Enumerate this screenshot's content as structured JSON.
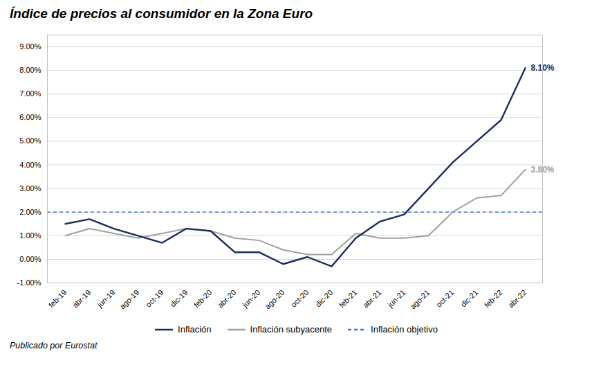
{
  "chart_data": {
    "type": "line",
    "title": "Índice de precios al consumidor en la Zona Euro",
    "subtitle": "Publicado por Eurostat",
    "categories": [
      "feb-19",
      "abr-19",
      "jun-19",
      "ago-19",
      "oct-19",
      "dic-19",
      "feb-20",
      "abr-20",
      "jun-20",
      "ago-20",
      "oct-20",
      "dic-20",
      "feb-21",
      "abr-21",
      "jun-21",
      "ago-21",
      "oct-21",
      "dic-21",
      "feb-22",
      "abr-22"
    ],
    "series": [
      {
        "name": "Inflación",
        "color": "#1a2e5a",
        "values": [
          1.5,
          1.7,
          1.3,
          1.0,
          0.7,
          1.3,
          1.2,
          0.3,
          0.3,
          -0.2,
          0.1,
          -0.3,
          0.9,
          1.6,
          1.9,
          3.0,
          4.1,
          5.0,
          5.9,
          8.1
        ]
      },
      {
        "name": "Inflación subyacente",
        "color": "#a0a0a0",
        "values": [
          1.0,
          1.3,
          1.1,
          0.9,
          1.1,
          1.3,
          1.2,
          0.9,
          0.8,
          0.4,
          0.2,
          0.2,
          1.1,
          0.9,
          0.9,
          1.0,
          2.0,
          2.6,
          2.7,
          3.8
        ]
      }
    ],
    "reference_lines": [
      {
        "name": "Inflación objetivo",
        "value": 2.0,
        "color": "#4472c4",
        "line_style": "dashed"
      }
    ],
    "annotations": [
      {
        "text": "8.10%",
        "x": "abr-22",
        "y": 8.1,
        "color": "#1a2e5a"
      },
      {
        "text": "3.80%",
        "x": "abr-22",
        "y": 3.8,
        "color": "#a0a0a0"
      }
    ],
    "ylim": [
      -1.0,
      9.5
    ],
    "yticks": [
      {
        "value": -1.0,
        "label": "-1.00%"
      },
      {
        "value": 0.0,
        "label": "0.00%"
      },
      {
        "value": 1.0,
        "label": "1.00%"
      },
      {
        "value": 2.0,
        "label": "2.00%"
      },
      {
        "value": 3.0,
        "label": "3.00%"
      },
      {
        "value": 4.0,
        "label": "4.00%"
      },
      {
        "value": 5.0,
        "label": "5.00%"
      },
      {
        "value": 6.0,
        "label": "6.00%"
      },
      {
        "value": 7.0,
        "label": "7.00%"
      },
      {
        "value": 8.0,
        "label": "8.00%"
      },
      {
        "value": 9.0,
        "label": "9.00%"
      }
    ],
    "grid": true,
    "legend": "bottom"
  }
}
